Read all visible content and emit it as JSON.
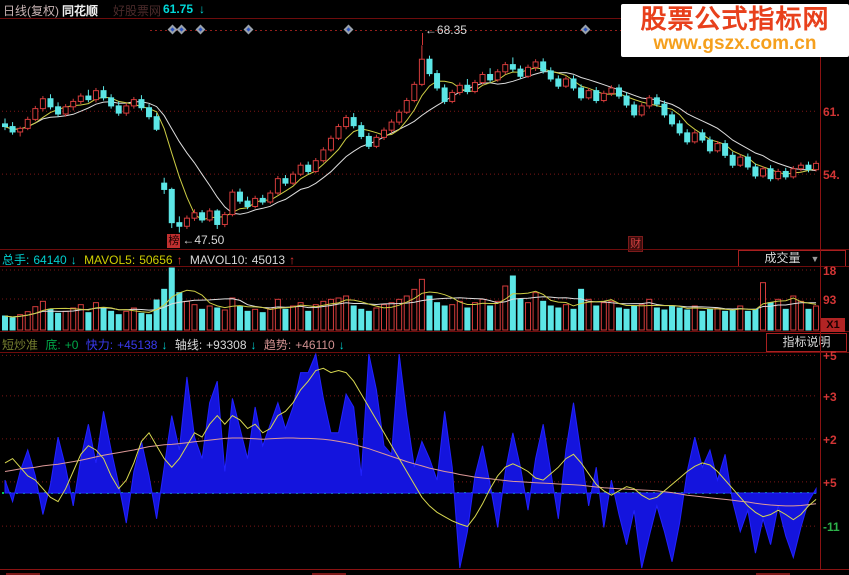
{
  "header": {
    "period": "日线(复权)",
    "app": "同花顺",
    "faint": "好股票网",
    "price": "61.75",
    "price_arrow": "↓"
  },
  "site_watermark": {
    "line1": "股票公式指标网",
    "line2": "www.gszx.com.cn"
  },
  "volume_header": {
    "zongshou_label": "总手:",
    "zongshou_value": "64140",
    "zongshou_arrow": "↓",
    "mavol5_label": "MAVOL5:",
    "mavol5_value": "50656",
    "mavol5_arrow": "↑",
    "mavol10_label": "MAVOL10:",
    "mavol10_value": "45013",
    "mavol10_arrow": "↑",
    "selector": "成交量",
    "selector_arrow": "▼"
  },
  "indicator_header": {
    "name": "短炒准",
    "di_label": "底:",
    "di_value": "+0",
    "kuaili_label": "快力:",
    "kuaili_value": "+45138",
    "kuaili_arrow": "↓",
    "zhouxian_label": "轴线:",
    "zhouxian_value": "+93308",
    "zhouxian_arrow": "↓",
    "qushi_label": "趋势:",
    "qushi_value": "+46110",
    "qushi_arrow": "↓",
    "button": "指标说明"
  },
  "colors": {
    "up": "#d43c3c",
    "down": "#5ce6e6",
    "ma5": "#cccc44",
    "ma10": "#dddddd",
    "grid": "#7d1616",
    "blue_area": "#1414dd",
    "yellow_line": "#d8d850",
    "pink_line": "#dd9999",
    "green_dots": "#00cc55",
    "axis_red": "#d23535",
    "axis_green": "#2db34a"
  },
  "chart_data": [
    {
      "type": "candlestick",
      "title": "日线(复权) 主图",
      "high_annotation": "←68.35",
      "low_badge": "榜",
      "low_annotation": "←47.50",
      "event_badge": "财",
      "event_badge_index": 83,
      "diamond_marker_xs": [
        172,
        181,
        200,
        248,
        348,
        585
      ],
      "axis_labels": [
        {
          "text": "61.",
          "price": 61
        },
        {
          "text": "54.",
          "price": 54
        }
      ],
      "price_top": 70.5,
      "price_bottom": 46.0,
      "candles": [
        [
          59.6,
          60.2,
          58.9,
          59.3
        ],
        [
          59.3,
          59.8,
          58.4,
          58.7
        ],
        [
          58.7,
          59.3,
          58.2,
          59.1
        ],
        [
          59.1,
          60.4,
          58.9,
          60.1
        ],
        [
          60.1,
          61.6,
          59.9,
          61.3
        ],
        [
          61.3,
          62.7,
          61.0,
          62.4
        ],
        [
          62.4,
          62.9,
          61.2,
          61.5
        ],
        [
          61.5,
          62.0,
          60.4,
          60.7
        ],
        [
          60.7,
          61.8,
          60.4,
          61.5
        ],
        [
          61.5,
          62.4,
          61.1,
          62.1
        ],
        [
          62.1,
          63.0,
          61.8,
          62.7
        ],
        [
          62.7,
          63.4,
          62.0,
          62.3
        ],
        [
          62.3,
          63.6,
          62.0,
          63.3
        ],
        [
          63.3,
          63.8,
          62.2,
          62.5
        ],
        [
          62.5,
          62.9,
          61.3,
          61.6
        ],
        [
          61.6,
          62.1,
          60.5,
          60.8
        ],
        [
          60.8,
          61.9,
          60.5,
          61.6
        ],
        [
          61.6,
          62.6,
          61.3,
          62.3
        ],
        [
          62.3,
          62.8,
          61.1,
          61.4
        ],
        [
          61.4,
          61.8,
          60.1,
          60.4
        ],
        [
          60.4,
          60.8,
          58.8,
          59.0
        ],
        [
          53.0,
          53.6,
          51.8,
          52.3
        ],
        [
          52.3,
          52.5,
          48.0,
          48.6
        ],
        [
          48.6,
          49.3,
          47.5,
          48.2
        ],
        [
          48.2,
          49.4,
          47.9,
          49.1
        ],
        [
          49.1,
          50.1,
          48.8,
          49.7
        ],
        [
          49.7,
          50.0,
          48.6,
          48.9
        ],
        [
          48.9,
          50.2,
          48.7,
          49.9
        ],
        [
          49.9,
          50.1,
          47.9,
          48.4
        ],
        [
          48.4,
          49.8,
          48.1,
          49.5
        ],
        [
          49.5,
          52.3,
          49.3,
          52.0
        ],
        [
          52.0,
          52.4,
          50.7,
          51.0
        ],
        [
          51.0,
          51.5,
          50.1,
          50.4
        ],
        [
          50.4,
          51.6,
          50.2,
          51.3
        ],
        [
          51.3,
          51.7,
          50.6,
          50.9
        ],
        [
          50.9,
          52.2,
          50.7,
          51.9
        ],
        [
          51.9,
          53.8,
          51.7,
          53.5
        ],
        [
          53.5,
          53.9,
          52.7,
          53.0
        ],
        [
          53.0,
          54.3,
          52.8,
          54.0
        ],
        [
          54.0,
          55.3,
          53.8,
          55.0
        ],
        [
          55.0,
          55.4,
          54.0,
          54.3
        ],
        [
          54.3,
          55.8,
          54.1,
          55.5
        ],
        [
          55.5,
          57.0,
          55.3,
          56.7
        ],
        [
          56.7,
          58.3,
          56.5,
          58.0
        ],
        [
          58.0,
          59.6,
          57.8,
          59.3
        ],
        [
          59.3,
          60.6,
          59.0,
          60.3
        ],
        [
          60.3,
          60.8,
          59.1,
          59.4
        ],
        [
          59.4,
          59.8,
          57.9,
          58.2
        ],
        [
          58.2,
          58.6,
          56.8,
          57.1
        ],
        [
          57.1,
          58.4,
          56.9,
          58.1
        ],
        [
          58.1,
          59.2,
          57.8,
          58.9
        ],
        [
          58.9,
          60.1,
          58.6,
          59.8
        ],
        [
          59.8,
          61.2,
          59.5,
          60.9
        ],
        [
          60.9,
          62.5,
          60.7,
          62.2
        ],
        [
          62.2,
          64.3,
          62.0,
          64.0
        ],
        [
          64.0,
          68.35,
          63.8,
          66.8
        ],
        [
          66.8,
          67.2,
          64.9,
          65.2
        ],
        [
          65.2,
          65.6,
          63.3,
          63.6
        ],
        [
          63.6,
          64.0,
          61.8,
          62.1
        ],
        [
          62.1,
          63.4,
          61.9,
          63.1
        ],
        [
          63.1,
          64.2,
          62.8,
          63.9
        ],
        [
          63.9,
          64.6,
          62.9,
          63.2
        ],
        [
          63.2,
          64.5,
          63.0,
          64.2
        ],
        [
          64.2,
          65.4,
          64.0,
          65.1
        ],
        [
          65.1,
          65.8,
          64.2,
          64.5
        ],
        [
          64.5,
          65.7,
          64.3,
          65.4
        ],
        [
          65.4,
          66.5,
          65.1,
          66.2
        ],
        [
          66.2,
          67.0,
          65.4,
          65.7
        ],
        [
          65.7,
          66.1,
          64.6,
          64.9
        ],
        [
          64.9,
          66.2,
          64.7,
          65.9
        ],
        [
          65.9,
          66.8,
          65.5,
          66.5
        ],
        [
          66.5,
          66.9,
          65.2,
          65.5
        ],
        [
          65.5,
          65.9,
          64.3,
          64.6
        ],
        [
          64.6,
          65.0,
          63.5,
          63.8
        ],
        [
          63.8,
          64.9,
          63.6,
          64.6
        ],
        [
          64.6,
          65.0,
          63.3,
          63.6
        ],
        [
          63.6,
          64.0,
          62.2,
          62.5
        ],
        [
          62.5,
          63.6,
          62.3,
          63.3
        ],
        [
          63.3,
          63.7,
          61.9,
          62.2
        ],
        [
          62.2,
          63.3,
          62.0,
          63.0
        ],
        [
          63.0,
          63.9,
          62.7,
          63.6
        ],
        [
          63.6,
          64.0,
          62.4,
          62.7
        ],
        [
          62.7,
          63.1,
          61.4,
          61.7
        ],
        [
          61.7,
          62.1,
          60.3,
          60.6
        ],
        [
          60.6,
          61.9,
          60.4,
          61.6
        ],
        [
          61.6,
          62.8,
          61.3,
          62.5
        ],
        [
          62.5,
          62.9,
          61.5,
          61.8
        ],
        [
          61.8,
          62.2,
          60.3,
          60.6
        ],
        [
          60.6,
          61.0,
          59.3,
          59.6
        ],
        [
          59.6,
          60.0,
          58.3,
          58.6
        ],
        [
          58.6,
          59.0,
          57.3,
          57.6
        ],
        [
          57.6,
          58.9,
          57.4,
          58.6
        ],
        [
          58.6,
          59.0,
          57.5,
          57.8
        ],
        [
          57.8,
          58.2,
          56.3,
          56.6
        ],
        [
          56.6,
          57.7,
          56.4,
          57.4
        ],
        [
          57.4,
          57.8,
          55.8,
          56.1
        ],
        [
          56.1,
          56.5,
          54.7,
          55.0
        ],
        [
          55.0,
          56.2,
          54.8,
          55.9
        ],
        [
          55.9,
          56.3,
          54.5,
          54.8
        ],
        [
          54.8,
          55.2,
          53.5,
          53.8
        ],
        [
          53.8,
          54.9,
          53.6,
          54.6
        ],
        [
          54.6,
          55.0,
          53.2,
          53.5
        ],
        [
          53.5,
          54.6,
          53.3,
          54.3
        ],
        [
          54.3,
          54.7,
          53.4,
          53.7
        ],
        [
          53.7,
          54.9,
          53.5,
          54.6
        ],
        [
          54.6,
          55.3,
          54.3,
          55.0
        ],
        [
          55.0,
          55.4,
          54.2,
          54.5
        ],
        [
          54.5,
          55.5,
          54.3,
          55.2
        ]
      ]
    },
    {
      "type": "bar",
      "title": "成交量",
      "unit_label": "X1",
      "axis_labels": [
        {
          "text": "18",
          "value": 180
        },
        {
          "text": "93",
          "value": 93
        }
      ],
      "max": 186,
      "values": [
        42,
        36,
        46,
        55,
        70,
        86,
        62,
        50,
        56,
        66,
        76,
        52,
        82,
        66,
        56,
        46,
        56,
        66,
        50,
        46,
        90,
        122,
        186,
        112,
        86,
        76,
        62,
        72,
        66,
        60,
        96,
        72,
        56,
        62,
        52,
        66,
        92,
        62,
        72,
        82,
        56,
        76,
        86,
        92,
        96,
        102,
        72,
        62,
        56,
        66,
        76,
        82,
        92,
        102,
        122,
        152,
        102,
        82,
        72,
        76,
        86,
        66,
        82,
        92,
        72,
        86,
        132,
        162,
        92,
        82,
        112,
        86,
        72,
        66,
        76,
        62,
        122,
        92,
        72,
        82,
        86,
        66,
        62,
        72,
        76,
        92,
        66,
        60,
        72,
        66,
        60,
        72,
        56,
        62,
        66,
        56,
        60,
        72,
        56,
        62,
        142,
        82,
        92,
        62,
        102,
        86,
        62,
        72
      ]
    },
    {
      "type": "area-line",
      "title": "短炒准",
      "axis_labels": [
        {
          "text": "+5",
          "v": 3.2
        },
        {
          "text": "+3",
          "v": 2.26
        },
        {
          "text": "+2",
          "v": 1.26
        },
        {
          "text": "+5",
          "v": 0.26
        },
        {
          "text": "-11",
          "v": -0.77,
          "green": true
        }
      ],
      "zero_line_v": 0,
      "series": [
        {
          "name": "快力",
          "style": "blue-area",
          "values": [
            0.3,
            -0.2,
            0.5,
            1.0,
            0.4,
            -0.5,
            0.2,
            1.3,
            0.6,
            -0.3,
            0.8,
            1.6,
            0.7,
            1.9,
            1.0,
            0.2,
            -0.7,
            0.5,
            1.2,
            0.4,
            -0.6,
            0.6,
            1.8,
            1.0,
            2.7,
            1.3,
            0.8,
            2.1,
            2.6,
            0.5,
            2.2,
            1.5,
            0.8,
            2.0,
            1.1,
            1.6,
            2.1,
            1.5,
            2.0,
            2.8,
            2.8,
            4.3,
            2.2,
            1.4,
            1.4,
            2.3,
            2.0,
            0.4,
            4.6,
            2.4,
            1.1,
            0.9,
            3.9,
            1.8,
            0.6,
            1.2,
            0.8,
            0.3,
            1.9,
            0.6,
            -2.7,
            -0.9,
            0.4,
            1.1,
            0.2,
            -0.8,
            0.5,
            1.4,
            0.6,
            -0.4,
            0.8,
            1.6,
            0.5,
            -0.6,
            1.0,
            2.1,
            0.9,
            -0.3,
            0.6,
            -0.8,
            0.3,
            -0.5,
            -1.2,
            -0.4,
            -2.4,
            -1.0,
            -0.3,
            -0.9,
            -1.6,
            -0.7,
            0.5,
            1.3,
            0.6,
            1.0,
            0.3,
            0.9,
            -0.2,
            -0.9,
            -0.4,
            -1.4,
            -0.6,
            -1.2,
            -0.3,
            -1.0,
            -1.5,
            -0.8,
            -0.2,
            0.1
          ]
        },
        {
          "name": "轴线",
          "style": "yellow-line",
          "values": [
            0.7,
            0.8,
            0.6,
            0.4,
            0.3,
            0.1,
            -0.1,
            -0.2,
            0.1,
            0.5,
            0.9,
            1.1,
            1.0,
            0.8,
            0.4,
            0.1,
            0.3,
            0.7,
            1.2,
            1.4,
            1.1,
            0.8,
            0.6,
            0.8,
            1.1,
            1.4,
            1.3,
            1.6,
            1.8,
            1.6,
            1.8,
            1.7,
            1.5,
            1.6,
            1.4,
            1.5,
            1.8,
            1.9,
            2.1,
            2.4,
            2.6,
            2.85,
            2.9,
            2.8,
            2.85,
            2.8,
            2.6,
            2.3,
            2.0,
            1.7,
            1.4,
            1.1,
            0.8,
            0.5,
            0.2,
            -0.1,
            -0.3,
            -0.45,
            -0.55,
            -0.65,
            -0.72,
            -0.78,
            -0.55,
            -0.25,
            0.1,
            0.4,
            0.6,
            0.68,
            0.6,
            0.5,
            0.35,
            0.3,
            0.45,
            0.6,
            0.8,
            0.9,
            0.7,
            0.45,
            0.2,
            0.05,
            -0.05,
            0.05,
            0.15,
            0.1,
            -0.05,
            -0.15,
            -0.1,
            0.05,
            0.2,
            0.35,
            0.5,
            0.62,
            0.7,
            0.65,
            0.5,
            0.3,
            0.1,
            -0.1,
            -0.3,
            -0.45,
            -0.55,
            -0.5,
            -0.4,
            -0.5,
            -0.62,
            -0.5,
            -0.3,
            -0.15
          ]
        },
        {
          "name": "趋势",
          "style": "pink-line",
          "values": [
            0.5,
            0.53,
            0.56,
            0.58,
            0.6,
            0.63,
            0.65,
            0.67,
            0.7,
            0.73,
            0.76,
            0.8,
            0.84,
            0.88,
            0.91,
            0.94,
            0.97,
            1.0,
            1.04,
            1.08,
            1.1,
            1.12,
            1.13,
            1.15,
            1.17,
            1.19,
            1.21,
            1.23,
            1.25,
            1.27,
            1.28,
            1.28,
            1.27,
            1.26,
            1.25,
            1.26,
            1.27,
            1.28,
            1.28,
            1.27,
            1.27,
            1.26,
            1.25,
            1.23,
            1.2,
            1.17,
            1.13,
            1.08,
            1.03,
            0.97,
            0.91,
            0.85,
            0.79,
            0.73,
            0.68,
            0.63,
            0.58,
            0.54,
            0.5,
            0.47,
            0.43,
            0.4,
            0.37,
            0.35,
            0.33,
            0.31,
            0.29,
            0.27,
            0.26,
            0.25,
            0.24,
            0.23,
            0.22,
            0.21,
            0.2,
            0.19,
            0.18,
            0.16,
            0.14,
            0.12,
            0.11,
            0.1,
            0.09,
            0.08,
            0.07,
            0.06,
            0.05,
            0.03,
            0.01,
            -0.02,
            -0.05,
            -0.07,
            -0.09,
            -0.11,
            -0.13,
            -0.15,
            -0.17,
            -0.19,
            -0.21,
            -0.24,
            -0.26,
            -0.28,
            -0.29,
            -0.3,
            -0.3,
            -0.29,
            -0.27,
            -0.25
          ]
        }
      ]
    }
  ]
}
